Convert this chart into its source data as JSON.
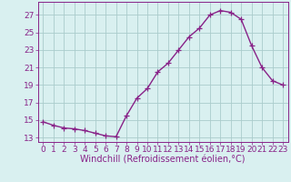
{
  "x": [
    0,
    1,
    2,
    3,
    4,
    5,
    6,
    7,
    8,
    9,
    10,
    11,
    12,
    13,
    14,
    15,
    16,
    17,
    18,
    19,
    20,
    21,
    22,
    23
  ],
  "y": [
    14.8,
    14.4,
    14.1,
    14.0,
    13.8,
    13.5,
    13.2,
    13.1,
    15.5,
    17.5,
    18.6,
    20.5,
    21.5,
    23.0,
    24.5,
    25.5,
    27.0,
    27.5,
    27.3,
    26.5,
    23.5,
    21.0,
    19.5,
    19.0
  ],
  "line_color": "#882288",
  "marker": "+",
  "marker_size": 4,
  "bg_color": "#d9f0f0",
  "grid_color": "#aacccc",
  "xlabel": "Windchill (Refroidissement éolien,°C)",
  "xlim": [
    -0.5,
    23.5
  ],
  "ylim": [
    12.5,
    28.5
  ],
  "yticks": [
    13,
    15,
    17,
    19,
    21,
    23,
    25,
    27
  ],
  "xticks": [
    0,
    1,
    2,
    3,
    4,
    5,
    6,
    7,
    8,
    9,
    10,
    11,
    12,
    13,
    14,
    15,
    16,
    17,
    18,
    19,
    20,
    21,
    22,
    23
  ],
  "tick_color": "#882288",
  "label_color": "#882288",
  "spine_color": "#882288",
  "font_size": 6.5,
  "xlabel_fontsize": 7,
  "linewidth": 1.0
}
